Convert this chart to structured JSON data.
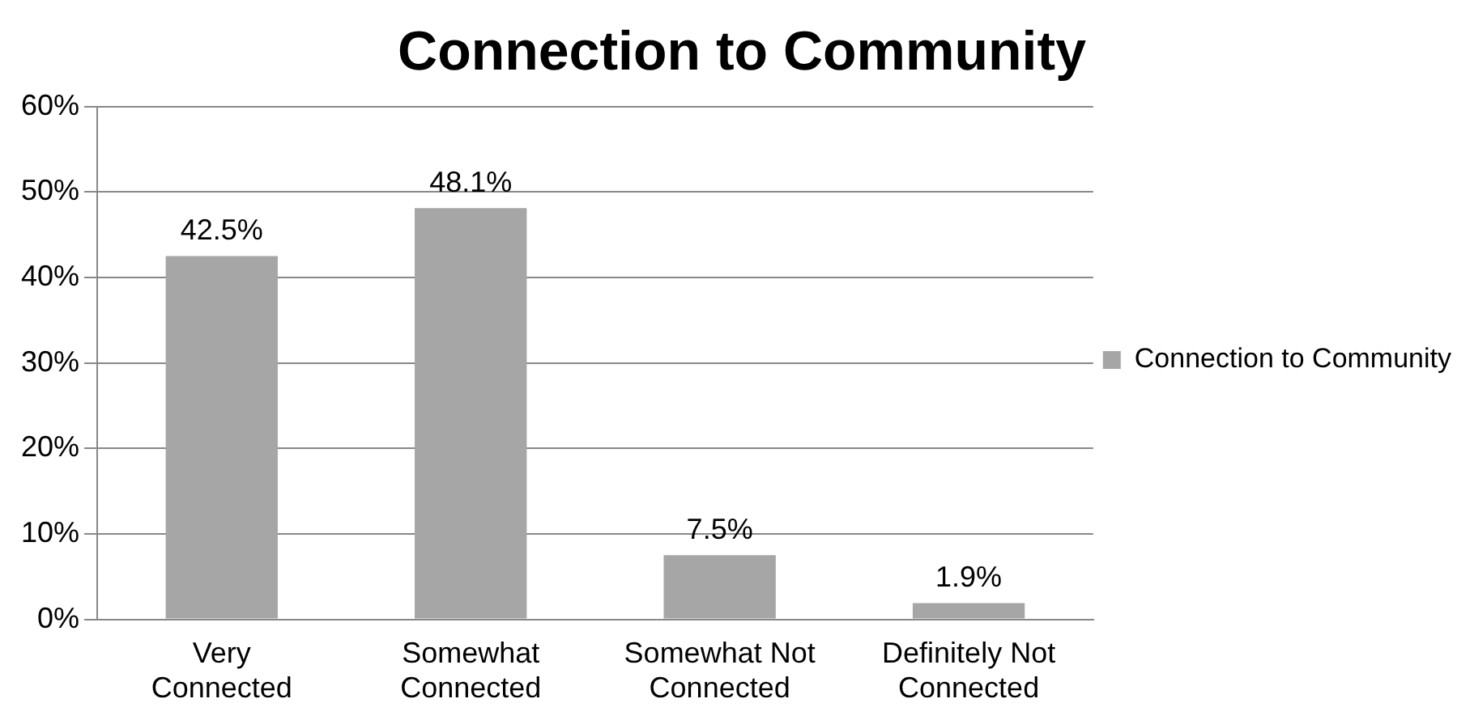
{
  "chart_data": {
    "type": "bar",
    "title": "Connection to Community",
    "categories": [
      "Very Connected",
      "Somewhat Connected",
      "Somewhat Not Connected",
      "Definitely Not Connected"
    ],
    "series": [
      {
        "name": "Connection to Community",
        "color": "#a6a6a6",
        "values": [
          42.5,
          48.1,
          7.5,
          1.9
        ],
        "value_labels": [
          "42.5%",
          "48.1%",
          "7.5%",
          "1.9%"
        ]
      }
    ],
    "ylim": [
      0,
      60
    ],
    "yticks": [
      {
        "value": 0,
        "label": "0%"
      },
      {
        "value": 10,
        "label": "10%"
      },
      {
        "value": 20,
        "label": "20%"
      },
      {
        "value": 30,
        "label": "30%"
      },
      {
        "value": 40,
        "label": "40%"
      },
      {
        "value": 50,
        "label": "50%"
      },
      {
        "value": 60,
        "label": "60%"
      }
    ],
    "grid": "y",
    "legend": "right"
  }
}
